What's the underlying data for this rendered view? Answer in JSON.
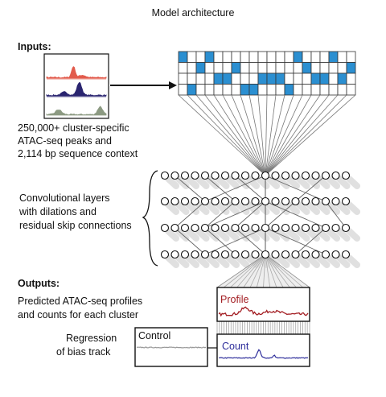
{
  "title": "Model architecture",
  "inputs": {
    "heading": "Inputs:",
    "lines": [
      "250,000+ cluster-specific",
      "ATAC-seq peaks and",
      "2,114 bp sequence context"
    ]
  },
  "layers": {
    "lines": [
      "Convolutional layers",
      "with dilations and",
      "residual skip connections"
    ]
  },
  "outputs": {
    "heading": "Outputs:",
    "lines": [
      "Predicted ATAC-seq profiles",
      "and counts for each cluster"
    ]
  },
  "bias": {
    "lines": [
      "Regression",
      "of bias track"
    ]
  },
  "tracks": {
    "control": "Control",
    "profile": "Profile",
    "count": "Count"
  }
}
